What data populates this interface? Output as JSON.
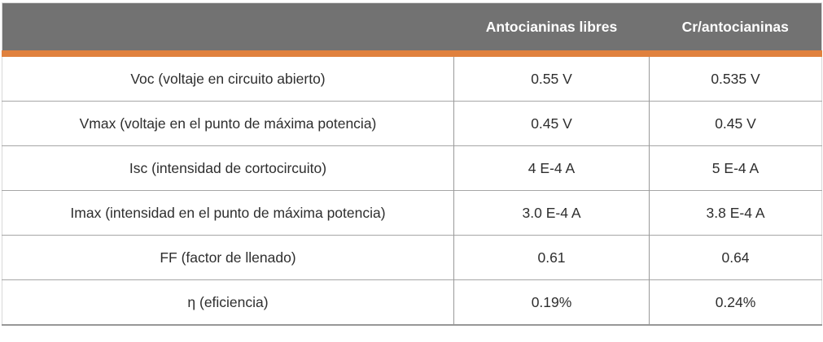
{
  "colors": {
    "header_background": "#727272",
    "header_text": "#FFFFFF",
    "accent_band": "#E0813E",
    "body_text": "#2E2E2E",
    "grid_line": "#9A9A9A",
    "bottom_rule": "#979797"
  },
  "chart_data": {
    "type": "table",
    "columns": [
      "",
      "Antocianinas libres",
      "Cr/antocianinas"
    ],
    "rows": [
      [
        "Voc (voltaje en circuito abierto)",
        "0.55 V",
        "0.535 V"
      ],
      [
        "Vmax (voltaje en el punto de máxima potencia)",
        "0.45 V",
        "0.45 V"
      ],
      [
        "Isc (intensidad de cortocircuito)",
        "4 E-4 A",
        "5 E-4 A"
      ],
      [
        "Imax (intensidad en el punto de máxima potencia)",
        "3.0 E-4 A",
        "3.8 E-4 A"
      ],
      [
        "FF (factor de llenado)",
        "0.61",
        "0.64"
      ],
      [
        "η (eficiencia)",
        "0.19%",
        "0.24%"
      ]
    ],
    "layout": {
      "header_style": "gray band with white bold text, orange underline",
      "cell_alignment": "center",
      "grid": "horizontal and vertical light gray lines in body"
    }
  }
}
